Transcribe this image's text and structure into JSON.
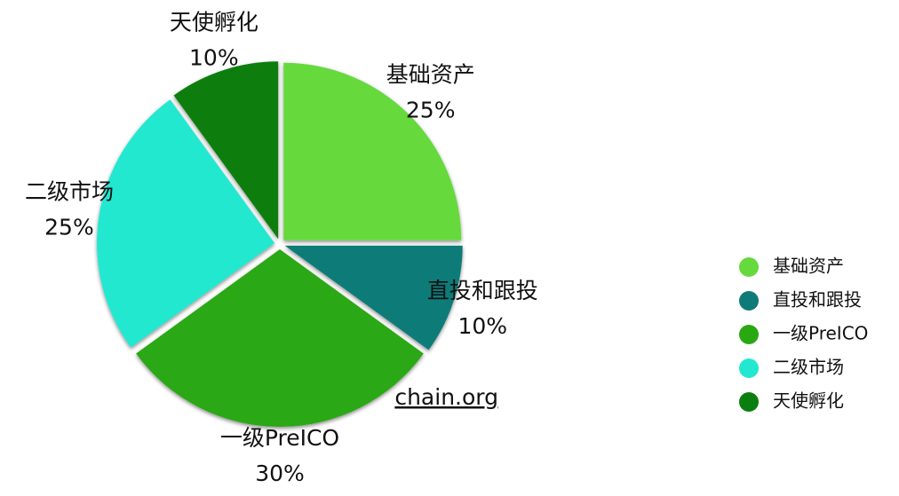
{
  "chart_data": {
    "type": "pie",
    "categories": [
      "基础资产",
      "直投和跟投",
      "一级PreICO",
      "二级市场",
      "天使孵化"
    ],
    "values": [
      25,
      10,
      30,
      25,
      10
    ],
    "value_labels": [
      "25%",
      "10%",
      "30%",
      "25%",
      "10%"
    ],
    "colors": [
      "#66d93d",
      "#0f7b78",
      "#2aa812",
      "#22e8d0",
      "#0b7e10"
    ],
    "legend": "right",
    "watermark": "chain.org"
  }
}
